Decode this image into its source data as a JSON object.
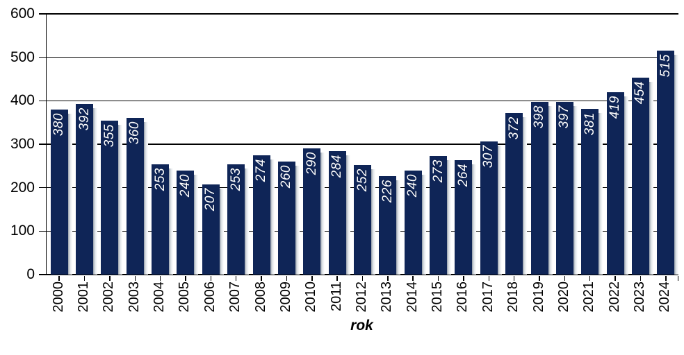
{
  "chart_data": {
    "type": "bar",
    "title": "",
    "xlabel": "rok",
    "ylabel": "",
    "categories": [
      "2000",
      "2001",
      "2002",
      "2003",
      "2004",
      "2005",
      "2006",
      "2007",
      "2008",
      "2009",
      "2010",
      "2011",
      "2012",
      "2013",
      "2014",
      "2015",
      "2016",
      "2017",
      "2018",
      "2019",
      "2020",
      "2021",
      "2022",
      "2023",
      "2024"
    ],
    "values": [
      380,
      392,
      355,
      360,
      253,
      240,
      207,
      253,
      274,
      260,
      290,
      284,
      252,
      226,
      240,
      273,
      264,
      307,
      372,
      398,
      397,
      381,
      419,
      454,
      515
    ],
    "yticks": [
      0,
      100,
      200,
      300,
      400,
      500,
      600
    ],
    "ylim": [
      0,
      600
    ],
    "grid": "horizontal",
    "legend": "none",
    "bar_color": "#0f2557",
    "bar_label_color": "#ffffff",
    "axis_color": "#000000",
    "data_label_style": "rotated-vertical-italic-inside-top",
    "x_label_style": "rotated-vertical"
  }
}
